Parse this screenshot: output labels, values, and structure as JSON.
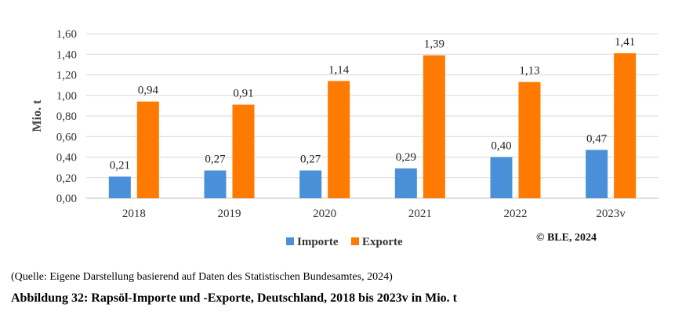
{
  "chart_data": {
    "type": "bar",
    "categories": [
      "2018",
      "2019",
      "2020",
      "2021",
      "2022",
      "2023v"
    ],
    "series": [
      {
        "name": "Importe",
        "values": [
          0.21,
          0.27,
          0.27,
          0.29,
          0.4,
          0.47
        ],
        "labels": [
          "0,21",
          "0,27",
          "0,27",
          "0,29",
          "0,40",
          "0,47"
        ],
        "color": "#4a90d9"
      },
      {
        "name": "Exporte",
        "values": [
          0.94,
          0.91,
          1.14,
          1.39,
          1.13,
          1.41
        ],
        "labels": [
          "0,94",
          "0,91",
          "1,14",
          "1,39",
          "1,13",
          "1,41"
        ],
        "color": "#ff7a00"
      }
    ],
    "ylabel": "Mio. t",
    "ylim": [
      0,
      1.6
    ],
    "yticks": [
      "0,00",
      "0,20",
      "0,40",
      "0,60",
      "0,80",
      "1,00",
      "1,20",
      "1,40",
      "1,60"
    ],
    "grid": true,
    "legend_position": "bottom"
  },
  "credit": "© BLE, 2024",
  "source_note": "(Quelle: Eigene Darstellung basierend auf Daten des Statistischen Bundesamtes, 2024)",
  "caption": "Abbildung 32: Rapsöl-Importe und -Exporte, Deutschland, 2018 bis 2023v in Mio. t"
}
